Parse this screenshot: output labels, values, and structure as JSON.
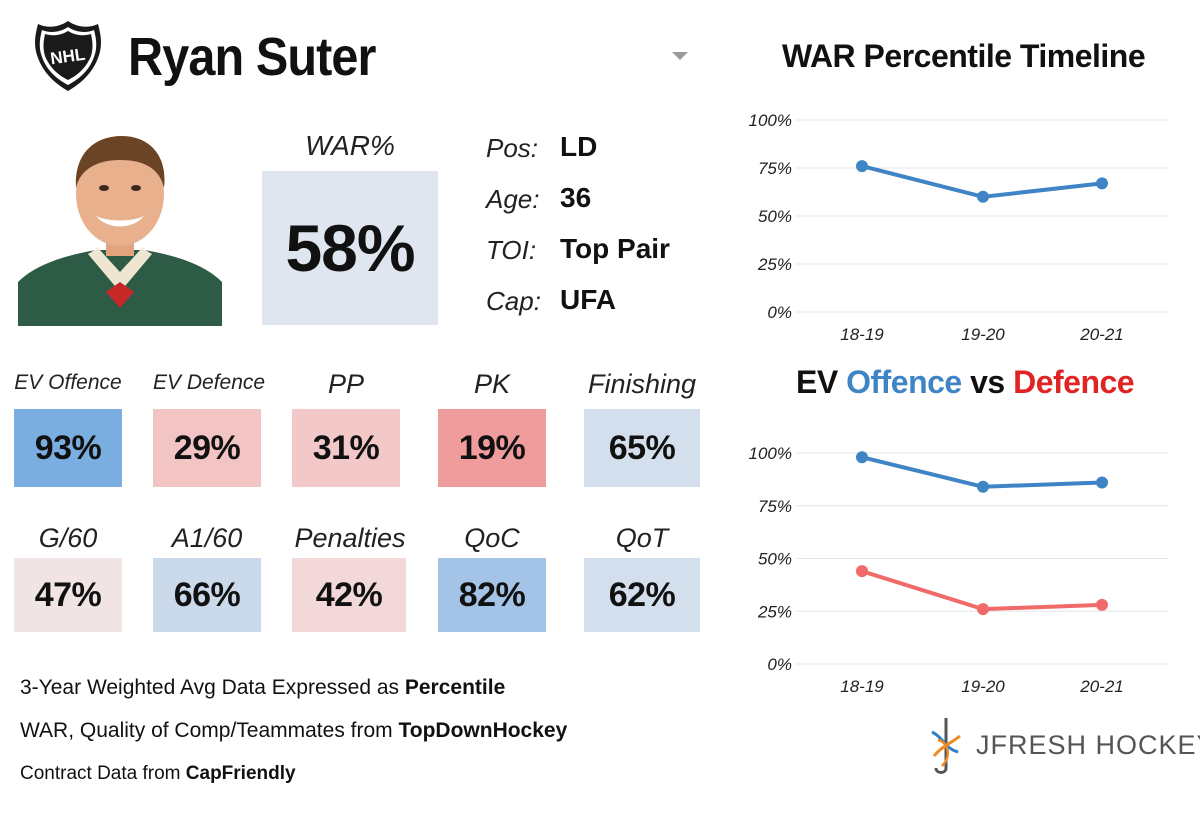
{
  "header": {
    "player_name": "Ryan Suter",
    "logo_text": "NHL"
  },
  "war": {
    "label": "WAR%",
    "value": "58%"
  },
  "info": [
    {
      "label": "Pos:",
      "value": "LD"
    },
    {
      "label": "Age:",
      "value": "36"
    },
    {
      "label": "TOI:",
      "value": "Top Pair"
    },
    {
      "label": "Cap:",
      "value": "UFA"
    }
  ],
  "tiles_row1": [
    {
      "label": "EV Offence",
      "value": "93%",
      "pct": 93,
      "color": "#7aaee0"
    },
    {
      "label": "EV Defence",
      "value": "29%",
      "pct": 29,
      "color": "#f2c4c4"
    },
    {
      "label": "PP",
      "value": "31%",
      "pct": 31,
      "color": "#f2c8c8"
    },
    {
      "label": "PK",
      "value": "19%",
      "pct": 19,
      "color": "#f19c9c"
    },
    {
      "label": "Finishing",
      "value": "65%",
      "pct": 65,
      "color": "#d3dfec"
    }
  ],
  "tiles_row2": [
    {
      "label": "G/60",
      "value": "47%",
      "pct": 47,
      "color": "#f0e4e4"
    },
    {
      "label": "A1/60",
      "value": "66%",
      "pct": 66,
      "color": "#cadaeb"
    },
    {
      "label": "Penalties",
      "value": "42%",
      "pct": 42,
      "color": "#f2d8d8"
    },
    {
      "label": "QoC",
      "value": "82%",
      "pct": 82,
      "color": "#a3c4e6"
    },
    {
      "label": "QoT",
      "value": "62%",
      "pct": 62,
      "color": "#d3dfec"
    }
  ],
  "footer": {
    "line1_prefix": "3-Year Weighted Avg Data Expressed as ",
    "line1_bold": "Percentile",
    "line2_prefix": "WAR, Quality of Comp/Teammates from ",
    "line2_bold": "TopDownHockey",
    "line3_prefix": "Contract Data from ",
    "line3_bold": "CapFriendly"
  },
  "brand": {
    "name": "JFRESH HOCKEY"
  },
  "colors": {
    "offence_blue": "#3f85c6",
    "defence_red": "#f06a6a",
    "title_red": "#e02424"
  },
  "chart_data": [
    {
      "type": "line",
      "title": "WAR Percentile Timeline",
      "categories": [
        "18-19",
        "19-20",
        "20-21"
      ],
      "series": [
        {
          "name": "WAR",
          "values": [
            76,
            60,
            67
          ],
          "color": "#3f85c6"
        }
      ],
      "yticks": [
        "0%",
        "25%",
        "50%",
        "75%",
        "100%"
      ],
      "ylim": [
        0,
        100
      ]
    },
    {
      "type": "line",
      "title_parts": [
        "EV ",
        "Offence",
        " vs ",
        "Defence"
      ],
      "categories": [
        "18-19",
        "19-20",
        "20-21"
      ],
      "series": [
        {
          "name": "Offence",
          "values": [
            98,
            84,
            86
          ],
          "color": "#3f85c6"
        },
        {
          "name": "Defence",
          "values": [
            44,
            26,
            28
          ],
          "color": "#f06a6a"
        }
      ],
      "yticks": [
        "0%",
        "25%",
        "50%",
        "75%",
        "100%"
      ],
      "ylim": [
        0,
        100
      ]
    }
  ]
}
